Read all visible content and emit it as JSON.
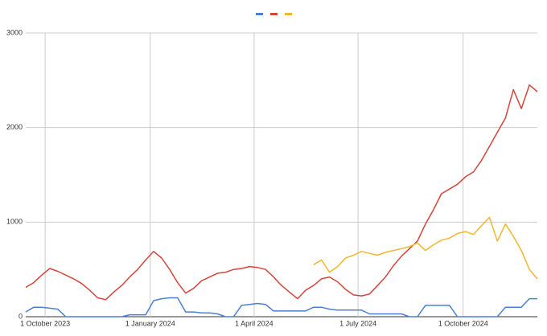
{
  "chart_data": {
    "type": "line",
    "x": [
      "2023-09-14",
      "2023-09-21",
      "2023-09-28",
      "2023-10-05",
      "2023-10-12",
      "2023-10-19",
      "2023-10-26",
      "2023-11-02",
      "2023-11-09",
      "2023-11-16",
      "2023-11-23",
      "2023-11-30",
      "2023-12-07",
      "2023-12-14",
      "2023-12-21",
      "2023-12-28",
      "2024-01-04",
      "2024-01-11",
      "2024-01-18",
      "2024-01-25",
      "2024-02-01",
      "2024-02-08",
      "2024-02-15",
      "2024-02-22",
      "2024-02-29",
      "2024-03-07",
      "2024-03-14",
      "2024-03-21",
      "2024-03-28",
      "2024-04-04",
      "2024-04-11",
      "2024-04-18",
      "2024-04-25",
      "2024-05-02",
      "2024-05-09",
      "2024-05-16",
      "2024-05-23",
      "2024-05-30",
      "2024-06-06",
      "2024-06-13",
      "2024-06-20",
      "2024-06-27",
      "2024-07-04",
      "2024-07-11",
      "2024-07-18",
      "2024-07-25",
      "2024-08-01",
      "2024-08-08",
      "2024-08-15",
      "2024-08-22",
      "2024-08-29",
      "2024-09-05",
      "2024-09-12",
      "2024-09-19",
      "2024-09-26",
      "2024-10-03",
      "2024-10-10",
      "2024-10-17",
      "2024-10-24",
      "2024-10-31",
      "2024-11-07",
      "2024-11-14",
      "2024-11-21",
      "2024-11-28",
      "2024-12-05"
    ],
    "series": [
      {
        "color": "#4a7fd4",
        "values": [
          50,
          100,
          100,
          90,
          80,
          0,
          0,
          0,
          0,
          0,
          0,
          0,
          0,
          20,
          20,
          20,
          170,
          190,
          200,
          200,
          50,
          50,
          40,
          40,
          30,
          0,
          0,
          120,
          130,
          140,
          130,
          60,
          60,
          60,
          60,
          60,
          100,
          100,
          80,
          70,
          70,
          70,
          70,
          30,
          30,
          30,
          30,
          30,
          0,
          0,
          120,
          120,
          120,
          120,
          0,
          0,
          0,
          0,
          0,
          0,
          100,
          100,
          100,
          190,
          190
        ]
      },
      {
        "color": "#d5443a",
        "values": [
          310,
          360,
          440,
          510,
          480,
          440,
          400,
          350,
          280,
          200,
          180,
          260,
          330,
          420,
          500,
          600,
          690,
          620,
          500,
          360,
          250,
          300,
          380,
          420,
          460,
          470,
          500,
          510,
          530,
          520,
          500,
          420,
          330,
          260,
          190,
          280,
          330,
          400,
          420,
          370,
          290,
          230,
          220,
          240,
          330,
          420,
          540,
          640,
          720,
          800,
          980,
          1130,
          1300,
          1350,
          1400,
          1480,
          1530,
          1650,
          1800,
          1950,
          2100,
          2400,
          2200,
          2450,
          2380
        ]
      },
      {
        "color": "#f2b62c",
        "values": [
          null,
          null,
          null,
          null,
          null,
          null,
          null,
          null,
          null,
          null,
          null,
          null,
          null,
          null,
          null,
          null,
          null,
          null,
          null,
          null,
          null,
          null,
          null,
          null,
          null,
          null,
          null,
          null,
          null,
          null,
          null,
          null,
          null,
          null,
          null,
          null,
          550,
          600,
          470,
          530,
          620,
          650,
          690,
          670,
          650,
          680,
          700,
          720,
          740,
          780,
          700,
          760,
          810,
          830,
          880,
          900,
          870,
          960,
          1050,
          800,
          980,
          850,
          700,
          500,
          400
        ]
      }
    ],
    "xlim": [
      "2023-09-14",
      "2024-12-05"
    ],
    "xticks": [
      {
        "value": "2023-10-01",
        "label": "1 October 2023"
      },
      {
        "value": "2024-01-01",
        "label": "1 January 2024"
      },
      {
        "value": "2024-04-01",
        "label": "1 April 2024"
      },
      {
        "value": "2024-07-01",
        "label": "1 July 2024"
      },
      {
        "value": "2024-10-01",
        "label": "1 October 2024"
      }
    ],
    "ylim": [
      0,
      3000
    ],
    "yticks": [
      0,
      1000,
      2000,
      3000
    ],
    "grid": true
  }
}
